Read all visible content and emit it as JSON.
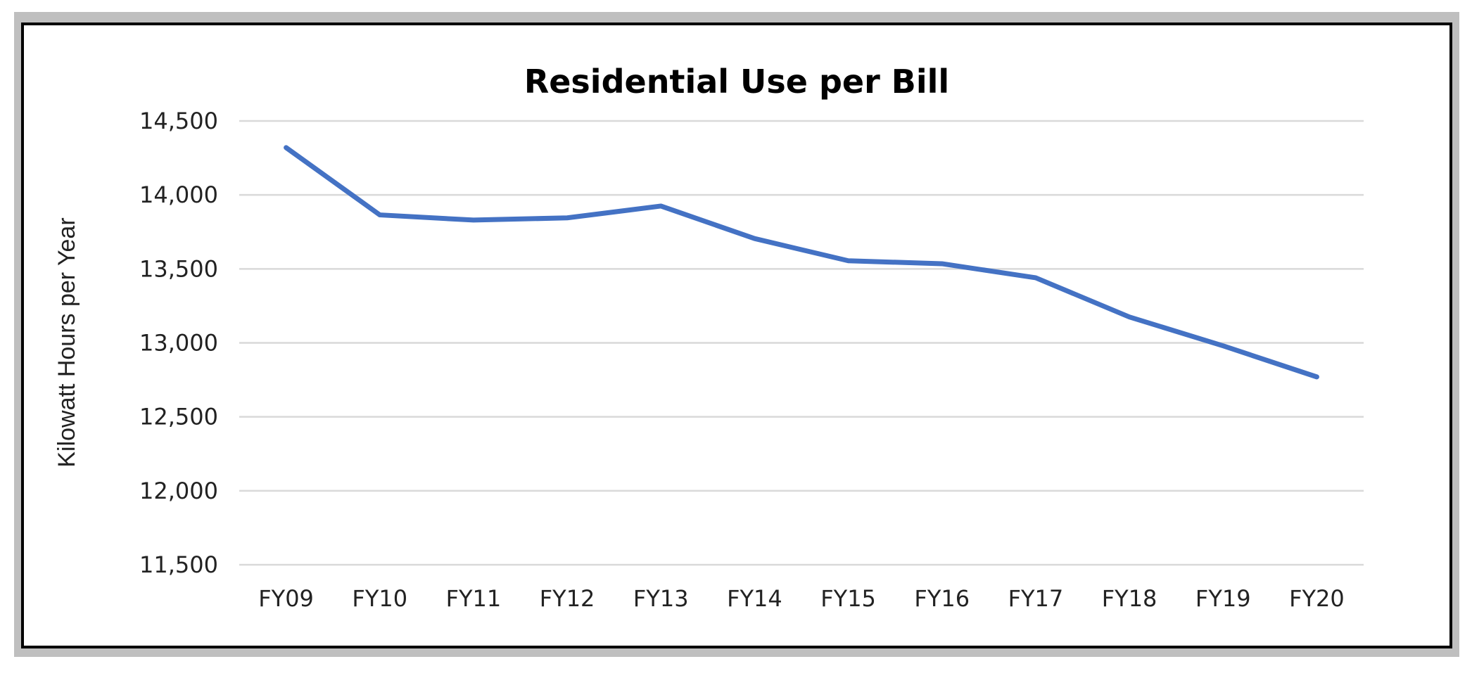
{
  "chart_data": {
    "type": "line",
    "title": "Residential Use per Bill",
    "xlabel": "",
    "ylabel": "Kilowatt Hours per Year",
    "categories": [
      "FY09",
      "FY10",
      "FY11",
      "FY12",
      "FY13",
      "FY14",
      "FY15",
      "FY16",
      "FY17",
      "FY18",
      "FY19",
      "FY20"
    ],
    "series": [
      {
        "name": "Residential Use per Bill",
        "color": "#4472C4",
        "values": [
          14320,
          13865,
          13830,
          13845,
          13925,
          13705,
          13555,
          13535,
          13440,
          13175,
          12980,
          12770
        ]
      }
    ],
    "yticks": [
      11500,
      12000,
      12500,
      13000,
      13500,
      14000,
      14500
    ],
    "ytick_labels": [
      "11,500",
      "12,000",
      "12,500",
      "13,000",
      "13,500",
      "14,000",
      "14,500"
    ],
    "ylim": [
      11500,
      14500
    ],
    "grid": true,
    "legend": "none"
  }
}
